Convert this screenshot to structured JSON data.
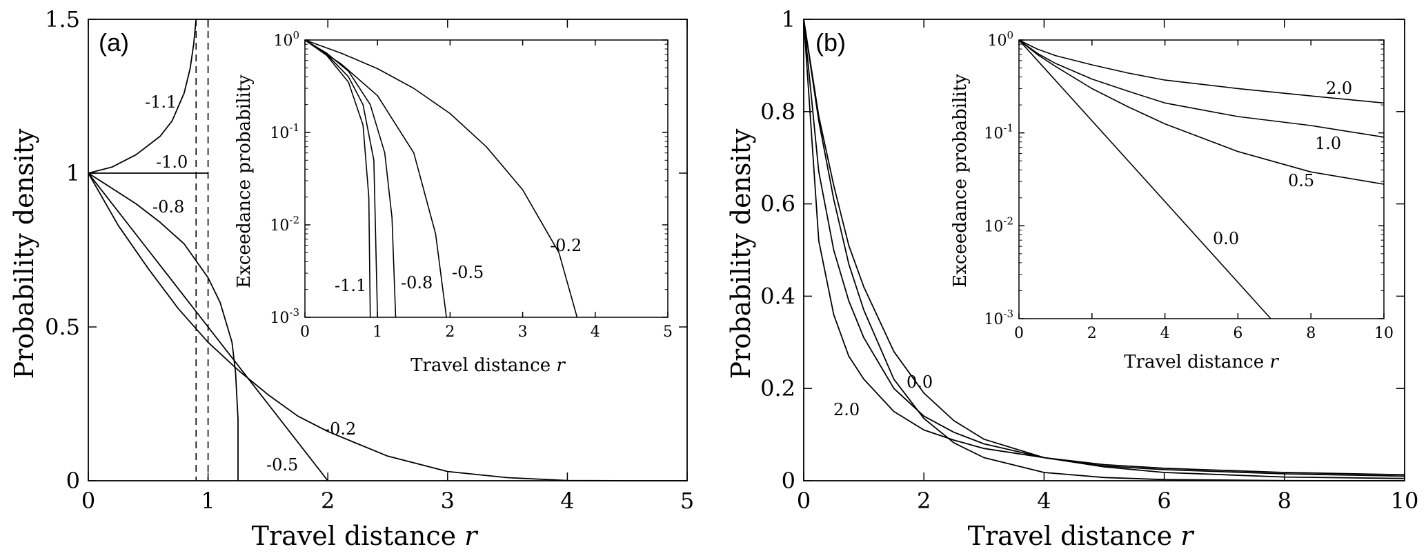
{
  "panels": [
    {
      "id": "a",
      "label": "(a)"
    },
    {
      "id": "b",
      "label": "(b)"
    }
  ],
  "chart_data": [
    {
      "type": "line",
      "panel": "(a)",
      "xlabel": "Travel distance",
      "xlabel_var": "r",
      "ylabel": "Probability density",
      "xlim": [
        0,
        5
      ],
      "ylim": [
        0,
        1.5
      ],
      "xticks": [
        "0",
        "1",
        "2",
        "3",
        "4",
        "5"
      ],
      "yticks": [
        "0",
        "0.5",
        "1",
        "1.5"
      ],
      "series": [
        {
          "name": "-1.1",
          "x": [
            0,
            0.2,
            0.4,
            0.6,
            0.7,
            0.8,
            0.85,
            0.88,
            0.9
          ],
          "y": [
            1,
            1.02,
            1.06,
            1.12,
            1.17,
            1.26,
            1.34,
            1.42,
            1.5
          ]
        },
        {
          "name": "-1.0",
          "x": [
            0,
            1.0
          ],
          "y": [
            1,
            1
          ]
        },
        {
          "name": "-0.8",
          "x": [
            0,
            0.2,
            0.4,
            0.6,
            0.8,
            1.0,
            1.1,
            1.2,
            1.23,
            1.25,
            1.25
          ],
          "y": [
            1,
            0.95,
            0.9,
            0.84,
            0.77,
            0.66,
            0.58,
            0.45,
            0.35,
            0.2,
            0
          ]
        },
        {
          "name": "-0.5",
          "x": [
            0,
            0.5,
            1.0,
            1.5,
            2.0
          ],
          "y": [
            1,
            0.75,
            0.5,
            0.25,
            0
          ]
        },
        {
          "name": "-0.2",
          "x": [
            0,
            0.25,
            0.5,
            0.75,
            1.0,
            1.25,
            1.5,
            1.75,
            2.0,
            2.5,
            3.0,
            3.5,
            4.0,
            4.5,
            5.0
          ],
          "y": [
            1,
            0.83,
            0.69,
            0.56,
            0.45,
            0.36,
            0.28,
            0.21,
            0.16,
            0.08,
            0.03,
            0.01,
            0.001,
            0,
            0
          ]
        }
      ],
      "asymptotes": [
        {
          "x": 0.9,
          "style": "dashed"
        },
        {
          "x": 1.0,
          "style": "dashed"
        }
      ],
      "annotations": [
        "-1.1",
        "-1.0",
        "-0.8",
        "-0.5",
        "-0.2"
      ],
      "inset": {
        "type": "line",
        "xlabel": "Travel distance",
        "xlabel_var": "r",
        "ylabel": "Exceedance probability",
        "xlim": [
          0,
          5
        ],
        "ylim": [
          0.001,
          1
        ],
        "yscale": "log",
        "xticks": [
          "0",
          "1",
          "2",
          "3",
          "4",
          "5"
        ],
        "yticks": [
          {
            "base": "10",
            "exp": "-3"
          },
          {
            "base": "10",
            "exp": "-2"
          },
          {
            "base": "10",
            "exp": "-1"
          },
          {
            "base": "10",
            "exp": "0"
          }
        ],
        "series": [
          {
            "name": "-1.1",
            "x": [
              0,
              0.3,
              0.6,
              0.8,
              0.88,
              0.9
            ],
            "y": [
              1,
              0.68,
              0.35,
              0.12,
              0.02,
              0.001
            ]
          },
          {
            "name": "-1.0",
            "x": [
              0,
              0.3,
              0.6,
              0.8,
              0.95,
              1.0
            ],
            "y": [
              1,
              0.7,
              0.4,
              0.2,
              0.05,
              0.001
            ]
          },
          {
            "name": "-0.8",
            "x": [
              0,
              0.3,
              0.6,
              0.9,
              1.1,
              1.2,
              1.25
            ],
            "y": [
              1,
              0.72,
              0.46,
              0.2,
              0.06,
              0.012,
              0.001
            ]
          },
          {
            "name": "-0.5",
            "x": [
              0,
              0.5,
              1.0,
              1.5,
              1.8,
              1.95
            ],
            "y": [
              1,
              0.55,
              0.25,
              0.06,
              0.008,
              0.001
            ]
          },
          {
            "name": "-0.2",
            "x": [
              0,
              0.5,
              1.0,
              1.5,
              2.0,
              2.5,
              3.0,
              3.5,
              3.75
            ],
            "y": [
              1,
              0.72,
              0.49,
              0.3,
              0.16,
              0.07,
              0.024,
              0.005,
              0.001
            ]
          }
        ],
        "annotations": [
          "-1.1",
          "-0.8",
          "-0.5",
          "-0.2"
        ]
      }
    },
    {
      "type": "line",
      "panel": "(b)",
      "xlabel": "Travel distance",
      "xlabel_var": "r",
      "ylabel": "Probability density",
      "xlim": [
        0,
        10
      ],
      "ylim": [
        0,
        1
      ],
      "xticks": [
        "0",
        "2",
        "4",
        "6",
        "8",
        "10"
      ],
      "yticks": [
        "0",
        "0.2",
        "0.4",
        "0.6",
        "0.8",
        "1"
      ],
      "series": [
        {
          "name": "0.0",
          "x": [
            0,
            0.25,
            0.5,
            0.75,
            1.0,
            1.5,
            2.0,
            2.5,
            3.0,
            4.0,
            5.0,
            6.0,
            8.0,
            10.0
          ],
          "y": [
            1,
            0.78,
            0.61,
            0.47,
            0.37,
            0.22,
            0.135,
            0.082,
            0.05,
            0.018,
            0.007,
            0.0025,
            0.0003,
            0
          ]
        },
        {
          "name": "0.5",
          "x": [
            0,
            0.25,
            0.5,
            0.75,
            1.0,
            1.5,
            2.0,
            2.5,
            3.0,
            4.0,
            5.0,
            6.0,
            8.0,
            10.0
          ],
          "y": [
            1,
            0.79,
            0.64,
            0.51,
            0.42,
            0.28,
            0.19,
            0.13,
            0.09,
            0.05,
            0.03,
            0.018,
            0.008,
            0.005
          ]
        },
        {
          "name": "1.0",
          "x": [
            0,
            0.25,
            0.5,
            0.75,
            1.0,
            1.5,
            2.0,
            2.5,
            3.0,
            4.0,
            5.0,
            6.0,
            8.0,
            10.0
          ],
          "y": [
            1,
            0.67,
            0.5,
            0.39,
            0.31,
            0.2,
            0.14,
            0.105,
            0.08,
            0.05,
            0.032,
            0.024,
            0.015,
            0.01
          ]
        },
        {
          "name": "2.0",
          "x": [
            0,
            0.25,
            0.5,
            0.75,
            1.0,
            1.5,
            2.0,
            2.5,
            3.0,
            4.0,
            5.0,
            6.0,
            8.0,
            10.0
          ],
          "y": [
            1,
            0.52,
            0.36,
            0.27,
            0.22,
            0.15,
            0.11,
            0.088,
            0.07,
            0.05,
            0.035,
            0.027,
            0.018,
            0.013
          ]
        }
      ],
      "annotations": [
        "0.0",
        "2.0"
      ],
      "inset": {
        "type": "line",
        "xlabel": "Travel distance",
        "xlabel_var": "r",
        "ylabel": "Exceedance probability",
        "xlim": [
          0,
          10
        ],
        "ylim": [
          0.001,
          1
        ],
        "yscale": "log",
        "xticks": [
          "0",
          "2",
          "4",
          "6",
          "8",
          "10"
        ],
        "yticks": [
          {
            "base": "10",
            "exp": "-3"
          },
          {
            "base": "10",
            "exp": "-2"
          },
          {
            "base": "10",
            "exp": "-1"
          },
          {
            "base": "10",
            "exp": "0"
          }
        ],
        "series": [
          {
            "name": "0.0",
            "x": [
              0,
              6.9
            ],
            "y": [
              1,
              0.001
            ]
          },
          {
            "name": "0.5",
            "x": [
              0,
              0.5,
              1,
              2,
              3,
              4,
              6,
              8,
              10
            ],
            "y": [
              1,
              0.7,
              0.52,
              0.3,
              0.19,
              0.125,
              0.063,
              0.038,
              0.028
            ]
          },
          {
            "name": "1.0",
            "x": [
              0,
              0.5,
              1,
              2,
              3,
              4,
              6,
              8,
              10
            ],
            "y": [
              1,
              0.72,
              0.56,
              0.38,
              0.28,
              0.21,
              0.15,
              0.12,
              0.09
            ]
          },
          {
            "name": "2.0",
            "x": [
              0,
              0.5,
              1,
              2,
              3,
              4,
              6,
              8,
              10
            ],
            "y": [
              1,
              0.8,
              0.68,
              0.54,
              0.44,
              0.37,
              0.3,
              0.25,
              0.21
            ]
          }
        ],
        "annotations": [
          "2.0",
          "1.0",
          "0.5",
          "0.0"
        ]
      }
    }
  ]
}
